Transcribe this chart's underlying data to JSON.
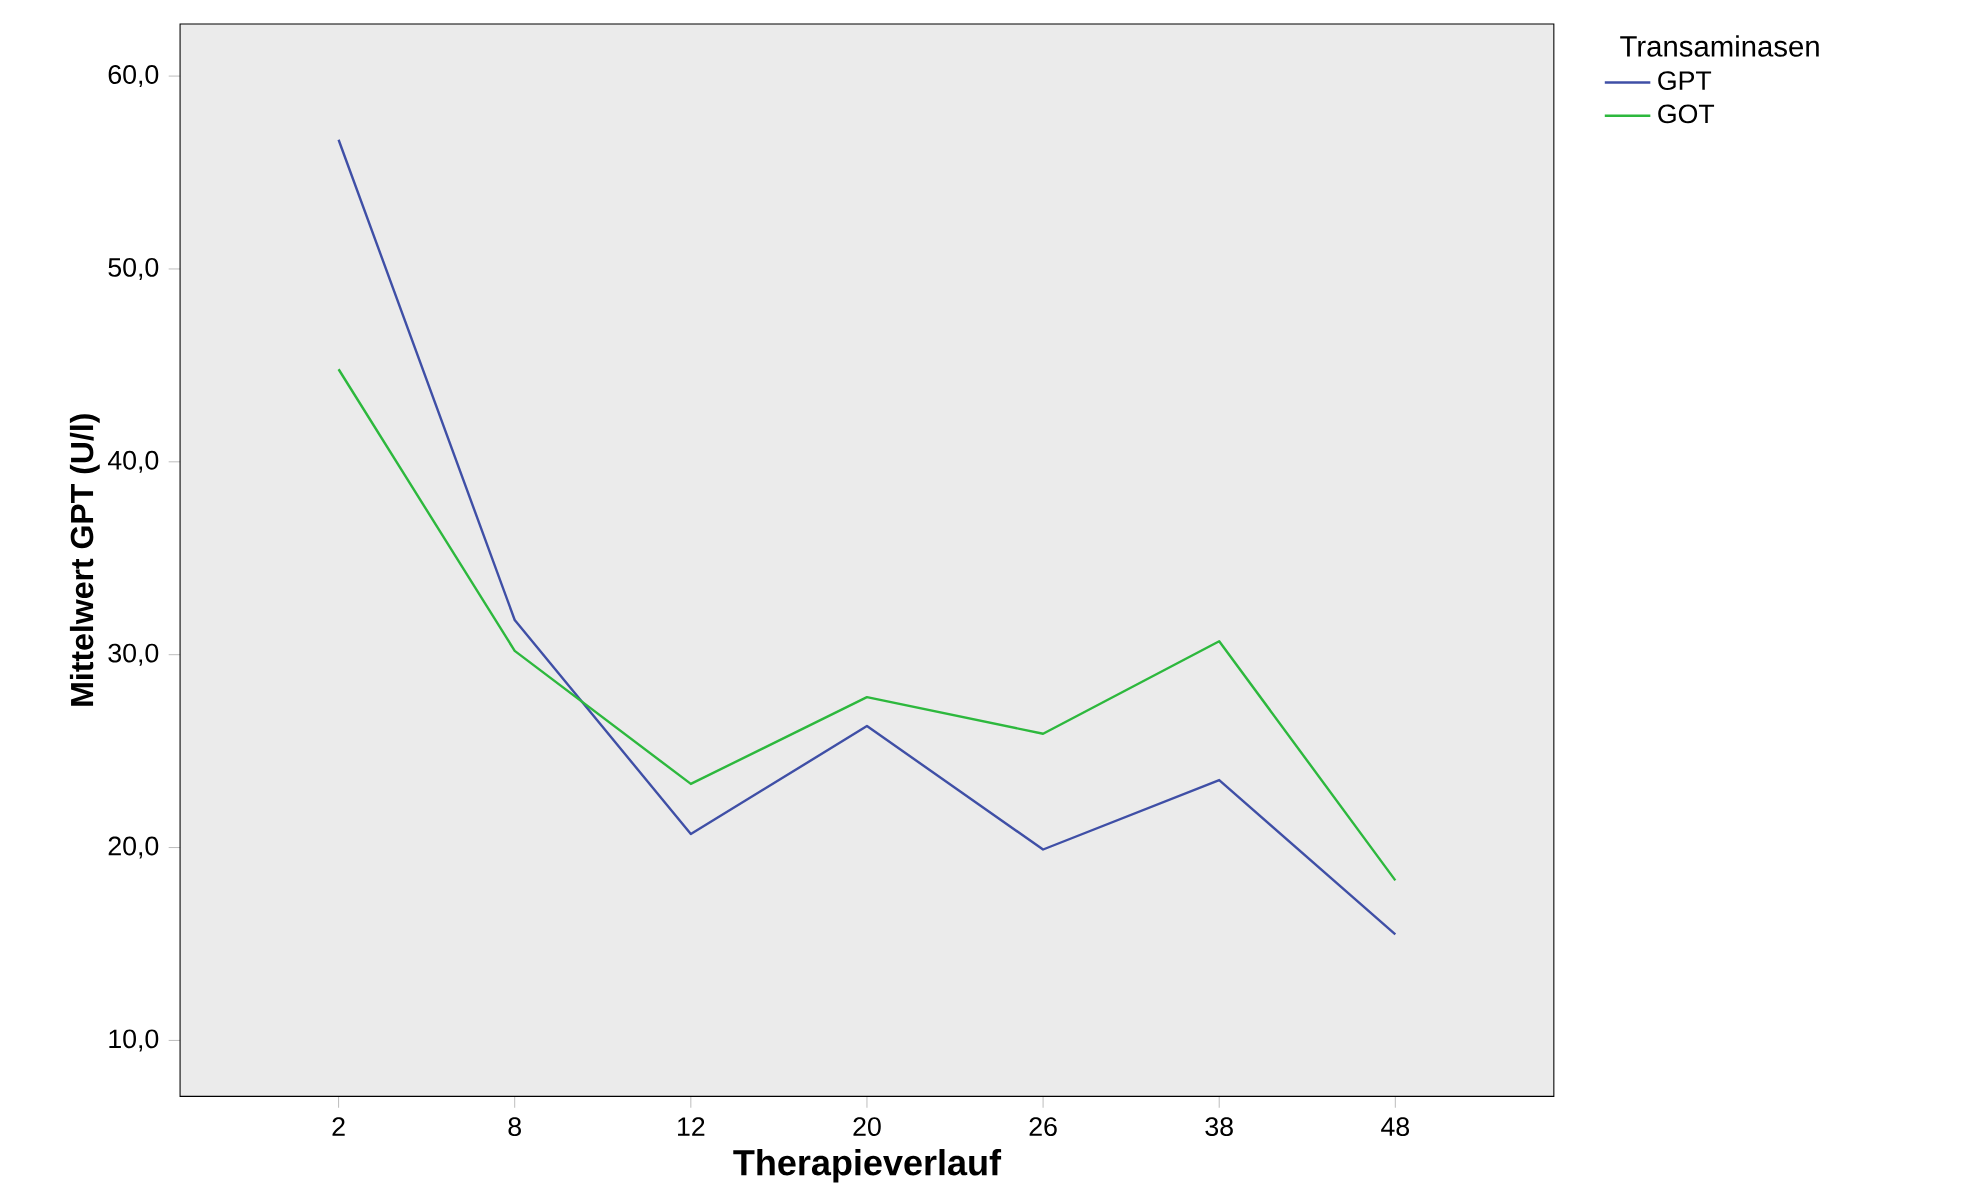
{
  "chart_data": {
    "type": "line",
    "xlabel": "Therapieverlauf",
    "ylabel": "Mittelwert GPT (U/l)",
    "legend_title": "Transaminasen",
    "categories": [
      "2",
      "8",
      "12",
      "20",
      "26",
      "38",
      "48"
    ],
    "series": [
      {
        "name": "GPT",
        "color": "#3f4fa6",
        "values": [
          56.7,
          31.8,
          20.7,
          26.3,
          19.9,
          23.5,
          15.5
        ]
      },
      {
        "name": "GOT",
        "color": "#2db83d",
        "values": [
          44.8,
          30.2,
          23.3,
          27.8,
          25.9,
          30.7,
          18.3
        ]
      }
    ],
    "ylim": [
      7.1,
      62.7
    ],
    "yticks": [
      {
        "value": 10,
        "label": "10,0"
      },
      {
        "value": 20,
        "label": "20,0"
      },
      {
        "value": 30,
        "label": "30,0"
      },
      {
        "value": 40,
        "label": "40,0"
      },
      {
        "value": 50,
        "label": "50,0"
      },
      {
        "value": 60,
        "label": "60,0"
      }
    ],
    "grid": false,
    "legend": "top right",
    "marker": "none",
    "line_style": "solid"
  }
}
